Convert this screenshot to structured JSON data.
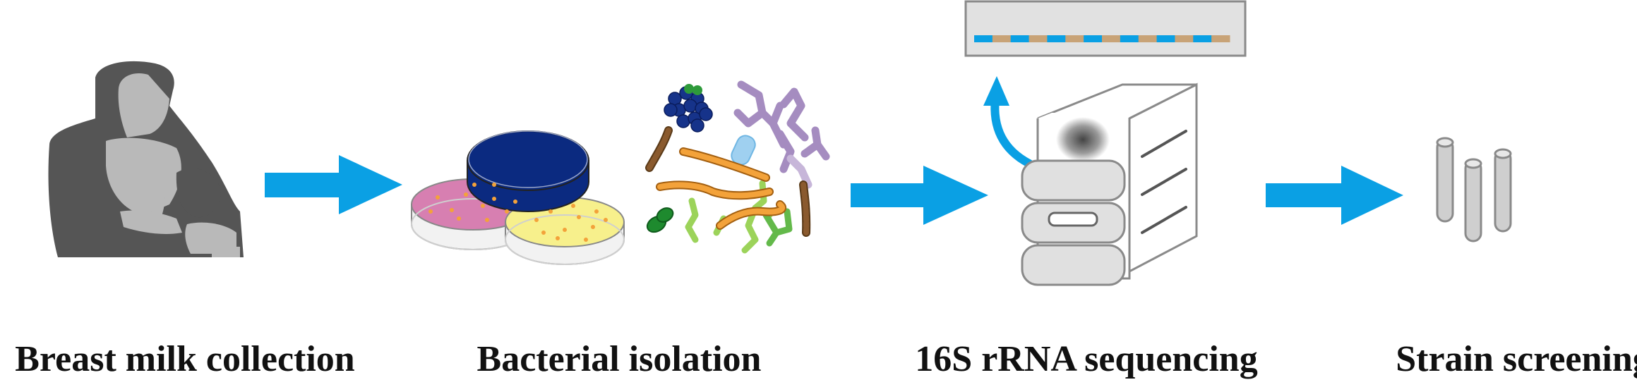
{
  "colors": {
    "arrow": "#0aa0e4",
    "person_dark": "#555555",
    "person_light": "#b9b9b9",
    "plate_blue": "#0b2a80",
    "plate_pink": "#d77fb1",
    "plate_yellow": "#f7f08c",
    "colony_orange": "#f3a23a",
    "bacteria_purple": "#a58cc0",
    "bacteria_green": "#8fc84e",
    "bacteria_brown": "#8a5a2e",
    "coccus_blue": "#16338a",
    "machine_fill": "#e0e0e0",
    "machine_stroke": "#8a8a8a",
    "sequence_blue": "#0aa0e4",
    "sequence_tan": "#c8a377",
    "tube": "#cfcfcf"
  },
  "icons": {
    "step1": "mother-breastfeeding-icon",
    "step2": "petri-dishes-icon",
    "step3": "mixed-bacteria-icon",
    "step4": "sequencer-machine-icon",
    "step5": "test-tubes-icon"
  },
  "steps": [
    {
      "label": "Breast milk collection"
    },
    {
      "label": "Bacterial isolation"
    },
    {
      "label": "16S rRNA sequencing"
    },
    {
      "label": "Strain screening"
    }
  ]
}
